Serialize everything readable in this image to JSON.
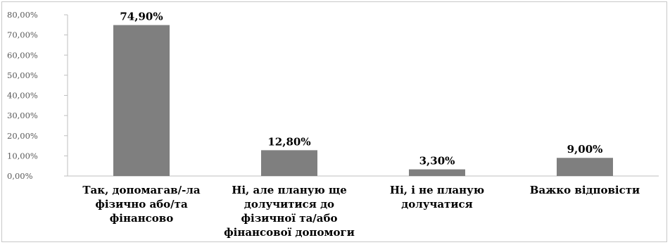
{
  "chart_data": {
    "type": "bar",
    "title": "",
    "xlabel": "",
    "ylabel": "",
    "categories": [
      [
        "Так, допомагав/-ла",
        "фізично або/та",
        "фінансово"
      ],
      [
        "Ні, але планую ще",
        "долучитися до",
        "фізичної та/або",
        "фінансової допомоги"
      ],
      [
        "Ні, і не планую",
        "долучатися"
      ],
      [
        "Важко відповісти"
      ]
    ],
    "values": [
      74.9,
      12.8,
      3.3,
      9.0
    ],
    "data_labels": [
      "74,90%",
      "12,80%",
      "3,30%",
      "9,00%"
    ],
    "ylim": [
      0,
      80
    ],
    "yticks": [
      0,
      10,
      20,
      30,
      40,
      50,
      60,
      70,
      80
    ],
    "ytick_labels": [
      "0,00%",
      "10,00%",
      "20,00%",
      "30,00%",
      "40,00%",
      "50,00%",
      "60,00%",
      "70,00%",
      "80,00%"
    ],
    "grid": false,
    "legend": "none",
    "colors": {
      "bar": "#7f7f7f",
      "axis": "#bfbfbf"
    }
  }
}
